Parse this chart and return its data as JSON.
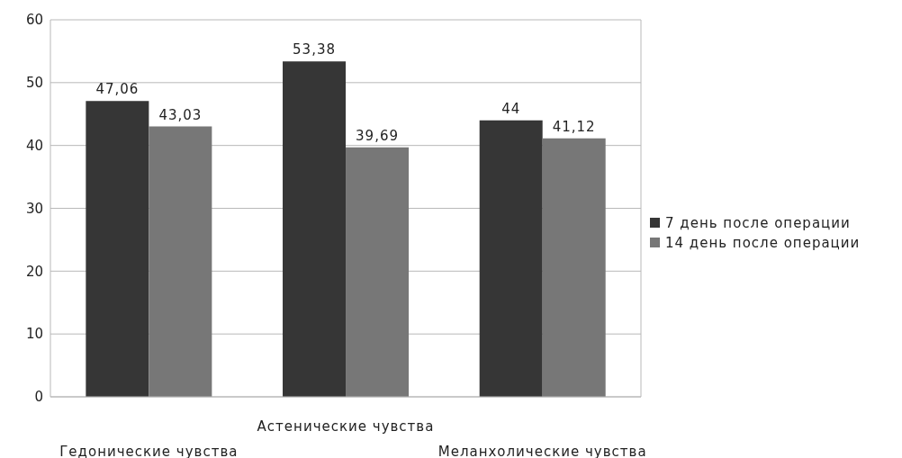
{
  "chart_data": {
    "type": "bar",
    "categories": [
      "Гедонические чувства",
      "Астенические чувства",
      "Меланхолические чувства"
    ],
    "series": [
      {
        "name": "7 день после операции",
        "color": "#363636",
        "values": [
          47.06,
          53.38,
          44
        ],
        "value_labels": [
          "47,06",
          "53,38",
          "44"
        ]
      },
      {
        "name": "14 день после операции",
        "color": "#777777",
        "values": [
          43.03,
          39.69,
          41.12
        ],
        "value_labels": [
          "43,03",
          "39,69",
          "41,12"
        ]
      }
    ],
    "ylim": [
      0,
      60
    ],
    "yticks": [
      0,
      10,
      20,
      30,
      40,
      50,
      60
    ],
    "grid": "y",
    "legend": "right"
  }
}
